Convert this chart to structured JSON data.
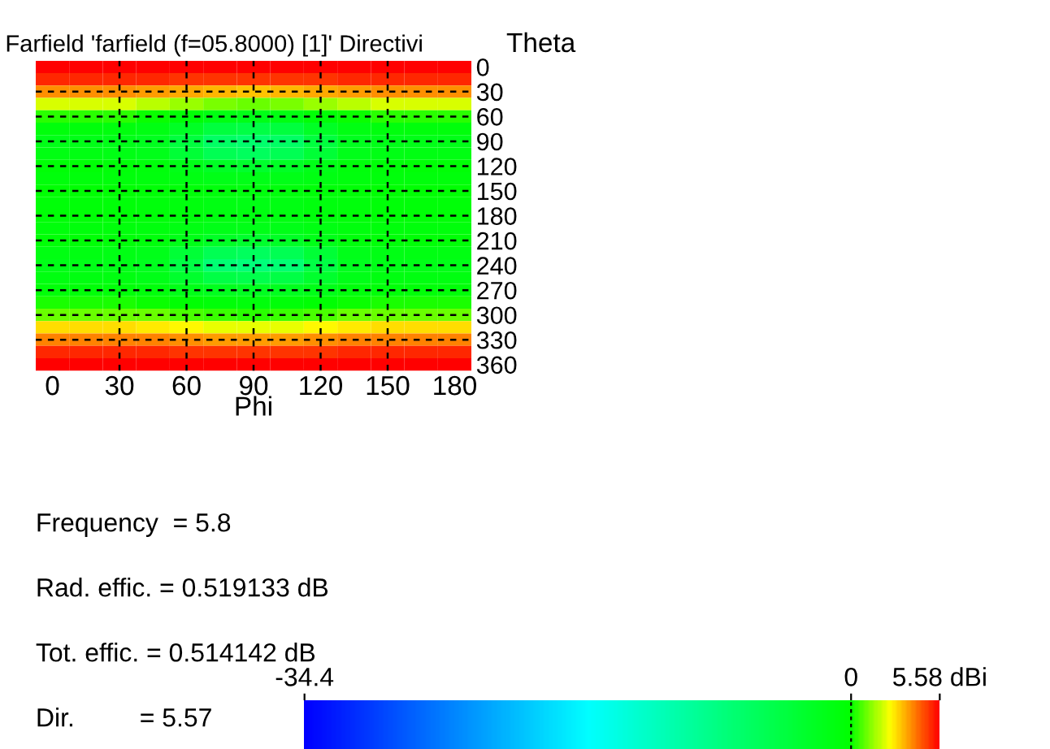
{
  "chart_data": {
    "type": "heatmap",
    "title": "Farfield 'farfield (f=05.8000) [1]' Directivi",
    "xlabel": "Phi",
    "ylabel": "Theta",
    "categories": [
      "0",
      null,
      "30",
      null,
      "60",
      null,
      "90",
      null,
      "120",
      null,
      "150",
      null,
      "180"
    ],
    "y_categories": [
      "0",
      null,
      "30",
      null,
      "60",
      null,
      "90",
      null,
      "120",
      null,
      "150",
      null,
      "180",
      null,
      "210",
      null,
      "240",
      null,
      "270",
      null,
      "300",
      null,
      "330",
      null,
      "360"
    ],
    "cells": [
      [
        5.5,
        5.5,
        5.5,
        5.5,
        5.5,
        5.5,
        5.5,
        5.5,
        5.5,
        5.5,
        5.5,
        5.5,
        5.5
      ],
      [
        5.0,
        5.0,
        5.0,
        5.0,
        4.9,
        4.8,
        4.8,
        4.8,
        4.9,
        5.0,
        5.0,
        5.0,
        5.0
      ],
      [
        3.8,
        3.8,
        3.8,
        3.7,
        3.5,
        3.3,
        3.2,
        3.3,
        3.5,
        3.7,
        3.8,
        3.8,
        3.8
      ],
      [
        2.0,
        2.0,
        2.0,
        1.8,
        1.5,
        1.2,
        1.0,
        1.2,
        1.5,
        1.8,
        2.0,
        2.0,
        2.0
      ],
      [
        0.3,
        0.3,
        0.3,
        0.1,
        -0.5,
        -1.2,
        -1.5,
        -1.2,
        -0.5,
        0.1,
        0.3,
        0.3,
        0.3
      ],
      [
        -0.8,
        -0.8,
        -0.9,
        -1.2,
        -2.5,
        -4.0,
        -4.5,
        -4.0,
        -2.5,
        -1.2,
        -0.9,
        -0.8,
        -0.8
      ],
      [
        -1.5,
        -1.5,
        -1.6,
        -2.0,
        -4.0,
        -6.5,
        -7.0,
        -6.5,
        -4.0,
        -2.0,
        -1.6,
        -1.5,
        -1.5
      ],
      [
        -1.2,
        -1.2,
        -1.3,
        -1.7,
        -3.5,
        -5.5,
        -6.0,
        -5.5,
        -3.5,
        -1.7,
        -1.3,
        -1.2,
        -1.2
      ],
      [
        -0.5,
        -0.5,
        -0.6,
        -0.8,
        -1.5,
        -2.5,
        -3.0,
        -2.5,
        -1.5,
        -0.8,
        -0.6,
        -0.5,
        -0.5
      ],
      [
        -0.8,
        -0.8,
        -0.8,
        -0.9,
        -1.2,
        -1.5,
        -1.6,
        -1.5,
        -1.2,
        -0.9,
        -0.8,
        -0.8,
        -0.8
      ],
      [
        -0.3,
        -0.3,
        -0.3,
        -0.4,
        -0.6,
        -0.8,
        -0.9,
        -0.8,
        -0.6,
        -0.4,
        -0.3,
        -0.3,
        -0.3
      ],
      [
        -0.6,
        -0.6,
        -0.6,
        -0.7,
        -0.9,
        -1.2,
        -1.3,
        -1.2,
        -0.9,
        -0.7,
        -0.6,
        -0.6,
        -0.6
      ],
      [
        -0.5,
        -0.5,
        -0.5,
        -0.6,
        -0.8,
        -1.0,
        -1.1,
        -1.0,
        -0.8,
        -0.6,
        -0.5,
        -0.5,
        -0.5
      ],
      [
        -0.8,
        -0.8,
        -0.8,
        -0.9,
        -1.2,
        -1.5,
        -1.6,
        -1.5,
        -1.2,
        -0.9,
        -0.8,
        -0.8,
        -0.8
      ],
      [
        -0.5,
        -0.5,
        -0.6,
        -0.8,
        -1.5,
        -2.5,
        -3.0,
        -2.5,
        -1.5,
        -0.8,
        -0.6,
        -0.5,
        -0.5
      ],
      [
        -1.2,
        -1.2,
        -1.3,
        -1.7,
        -3.5,
        -5.5,
        -6.0,
        -5.5,
        -3.5,
        -1.7,
        -1.3,
        -1.2,
        -1.2
      ],
      [
        -1.5,
        -1.5,
        -1.6,
        -2.0,
        -4.5,
        -7.5,
        -8.0,
        -7.5,
        -4.5,
        -2.0,
        -1.6,
        -1.5,
        -1.5
      ],
      [
        -1.0,
        -1.0,
        -1.1,
        -1.5,
        -3.0,
        -4.5,
        -5.0,
        -4.5,
        -3.0,
        -1.5,
        -1.1,
        -1.0,
        -1.0
      ],
      [
        -0.6,
        -0.6,
        -0.6,
        -0.8,
        -1.5,
        -2.0,
        -2.2,
        -2.0,
        -1.5,
        -0.8,
        -0.6,
        -0.6,
        -0.6
      ],
      [
        0.2,
        0.2,
        0.2,
        0.1,
        -0.3,
        -0.6,
        -0.7,
        -0.6,
        -0.3,
        0.1,
        0.2,
        0.2,
        0.2
      ],
      [
        1.0,
        1.0,
        1.0,
        0.9,
        0.7,
        0.5,
        0.4,
        0.5,
        0.7,
        0.9,
        1.0,
        1.0,
        1.0
      ],
      [
        2.8,
        2.8,
        2.8,
        2.7,
        2.5,
        2.3,
        2.2,
        2.3,
        2.5,
        2.7,
        2.8,
        2.8,
        2.8
      ],
      [
        4.0,
        4.0,
        4.0,
        3.9,
        3.8,
        3.7,
        3.6,
        3.7,
        3.8,
        3.9,
        4.0,
        4.0,
        4.0
      ],
      [
        5.0,
        5.0,
        5.0,
        5.0,
        4.9,
        4.8,
        4.8,
        4.8,
        4.9,
        5.0,
        5.0,
        5.0,
        5.0
      ],
      [
        5.5,
        5.5,
        5.5,
        5.5,
        5.5,
        5.5,
        5.5,
        5.5,
        5.5,
        5.5,
        5.5,
        5.5,
        5.5
      ]
    ],
    "clim": [
      -34.4,
      5.58
    ],
    "cticks": [
      {
        "value": -34.4,
        "label": "-34.4"
      },
      0,
      {
        "value": 5.58,
        "label": "5.58 dBi"
      }
    ],
    "grid": true,
    "annotations": [
      "Frequency  = 5.8",
      "Rad. effic. = 0.519133 dB",
      "Tot. effic. = 0.514142 dB",
      "Dir.         = 5.57"
    ]
  }
}
